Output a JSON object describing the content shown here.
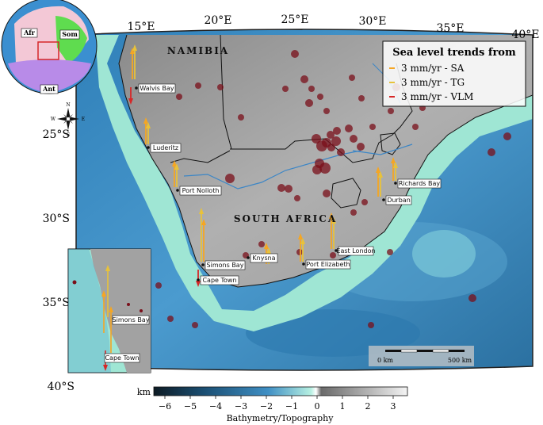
{
  "map": {
    "lon_labels": [
      "15°E",
      "20°E",
      "25°E",
      "30°E",
      "35°E",
      "40°E"
    ],
    "lat_labels": [
      "25°S",
      "30°S",
      "35°S",
      "40°S"
    ],
    "countries": [
      "NAMIBIA",
      "SOUTH AFRICA"
    ],
    "cities": [
      {
        "name": "Walvis Bay"
      },
      {
        "name": "Luderitz"
      },
      {
        "name": "Port Nolloth"
      },
      {
        "name": "Simons Bay"
      },
      {
        "name": "Cape Town"
      },
      {
        "name": "Knysna"
      },
      {
        "name": "Port Elizabeth"
      },
      {
        "name": "East London"
      },
      {
        "name": "Durban"
      },
      {
        "name": "Richards Bay"
      }
    ],
    "inset_cities": [
      {
        "name": "Simons Bay"
      },
      {
        "name": "Cape Town"
      }
    ],
    "globe_plates": [
      "Afr",
      "Som",
      "Ant"
    ],
    "north_arrow": {
      "n": "N",
      "s": "S",
      "e": "E",
      "w": "W"
    }
  },
  "legend": {
    "title": "Sea level trends from",
    "items": [
      {
        "label": "3 mm/yr - SA",
        "color": "#f5a623"
      },
      {
        "label": "3 mm/yr - TG",
        "color": "#e8c23a"
      },
      {
        "label": "3 mm/yr - VLM",
        "color": "#d62728"
      }
    ]
  },
  "scalebar": {
    "left_label": "0 km",
    "right_label": "500 km"
  },
  "colorbar": {
    "unit": "km",
    "ticks": [
      "−6",
      "−5",
      "−4",
      "−3",
      "−2",
      "−1",
      "0",
      "1",
      "2",
      "3"
    ],
    "title": "Bathymetry/Topography"
  },
  "colors": {
    "sea_deep": "#1e5f8e",
    "sea_mid": "#3f8fc4",
    "shelf": "#9fe6d4",
    "land": "#a8a8a8",
    "quake": "#7a0f1a",
    "vlm": "#d62728",
    "sa": "#f5a623",
    "tg": "#e8c23a"
  }
}
